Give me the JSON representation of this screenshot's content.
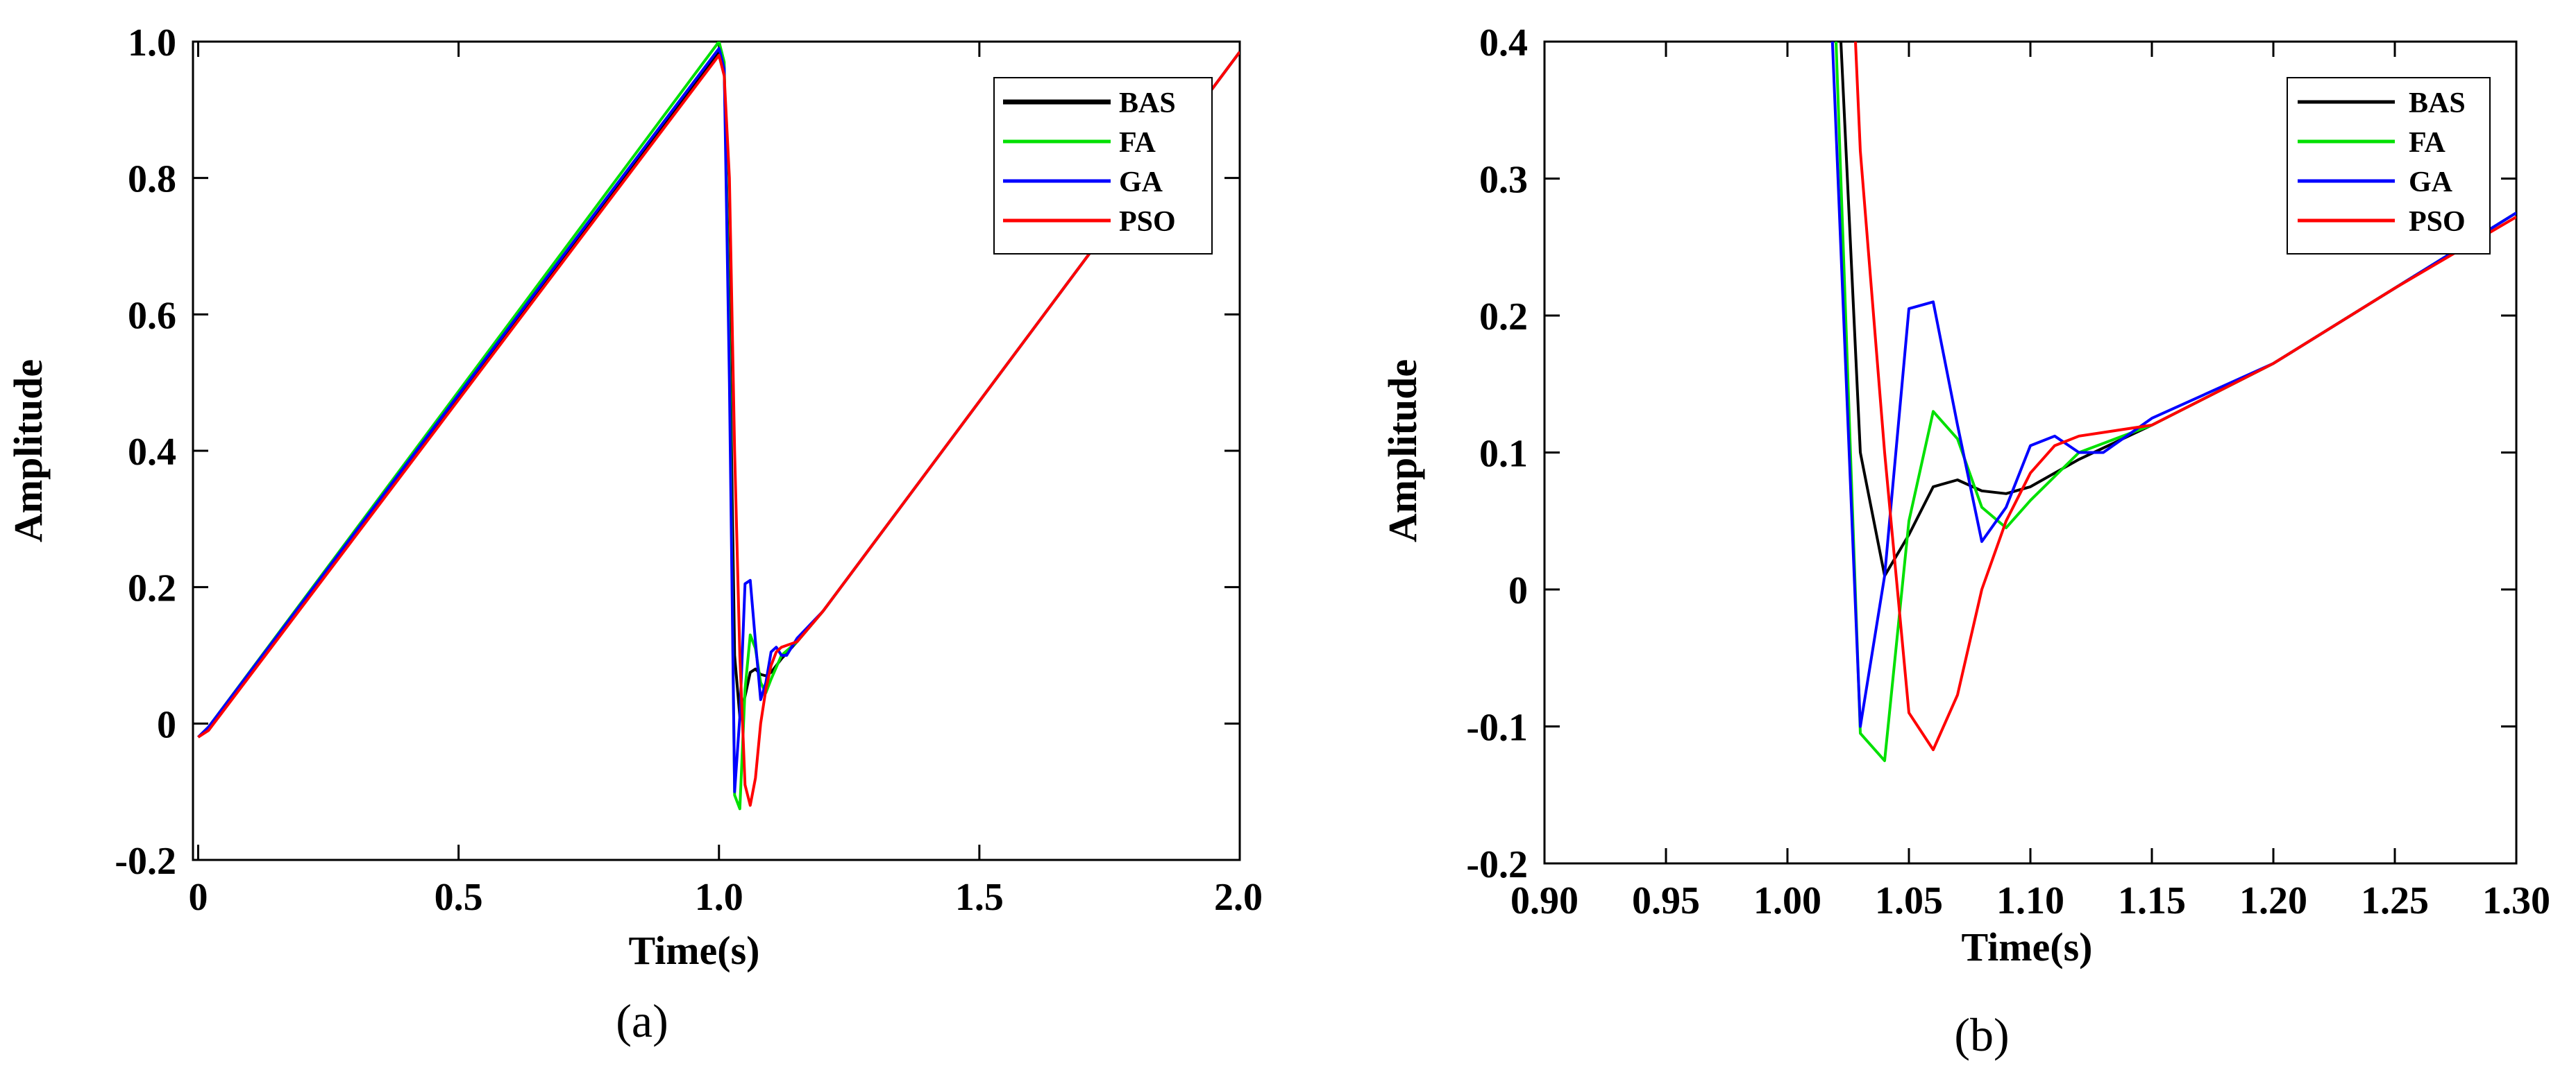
{
  "chart_data": [
    {
      "type": "line",
      "panel": "a",
      "caption": "(a)",
      "xlabel": "Time(s)",
      "ylabel": "Amplitude",
      "xlim": [
        -0.01,
        2.0
      ],
      "ylim": [
        -0.2,
        1.0
      ],
      "xticks": [
        0,
        0.5,
        1.0,
        1.5,
        2.0
      ],
      "xtick_labels": [
        "0",
        "0.5",
        "1.0",
        "1.5",
        "2.0"
      ],
      "yticks": [
        -0.2,
        0,
        0.2,
        0.4,
        0.6,
        0.8,
        1.0
      ],
      "ytick_labels": [
        "-0.2",
        "0",
        "0.2",
        "0.4",
        "0.6",
        "0.8",
        "1.0"
      ],
      "legend": [
        "BAS",
        "FA",
        "GA",
        "PSO"
      ],
      "legend_position": "top-right",
      "series": [
        {
          "name": "BAS",
          "color": "#000000",
          "x": [
            0,
            0.02,
            1.0,
            1.01,
            1.02,
            1.03,
            1.04,
            1.05,
            1.06,
            1.07,
            1.08,
            1.09,
            1.1,
            1.12,
            1.15,
            1.2,
            2.0
          ],
          "y": [
            -0.02,
            -0.005,
            0.985,
            0.96,
            0.6,
            0.1,
            0.01,
            0.04,
            0.075,
            0.08,
            0.072,
            0.07,
            0.075,
            0.095,
            0.12,
            0.165,
            0.985
          ]
        },
        {
          "name": "FA",
          "color": "#00e000",
          "x": [
            0,
            0.02,
            1.0,
            1.01,
            1.02,
            1.03,
            1.04,
            1.05,
            1.06,
            1.07,
            1.08,
            1.09,
            1.1,
            1.12,
            1.15,
            1.2,
            2.0
          ],
          "y": [
            -0.02,
            -0.005,
            1.0,
            0.97,
            0.55,
            -0.105,
            -0.125,
            0.05,
            0.13,
            0.11,
            0.06,
            0.045,
            0.065,
            0.1,
            0.12,
            0.165,
            0.985
          ]
        },
        {
          "name": "GA",
          "color": "#0000ff",
          "x": [
            0,
            0.02,
            1.0,
            1.01,
            1.02,
            1.03,
            1.04,
            1.05,
            1.06,
            1.07,
            1.08,
            1.09,
            1.1,
            1.11,
            1.12,
            1.13,
            1.15,
            1.2,
            2.0
          ],
          "y": [
            -0.02,
            -0.005,
            0.99,
            0.96,
            0.5,
            -0.1,
            0.01,
            0.205,
            0.21,
            0.12,
            0.035,
            0.06,
            0.105,
            0.112,
            0.1,
            0.1,
            0.125,
            0.165,
            0.985
          ]
        },
        {
          "name": "PSO",
          "color": "#ff0000",
          "x": [
            0,
            0.02,
            1.0,
            1.01,
            1.02,
            1.03,
            1.04,
            1.05,
            1.06,
            1.07,
            1.08,
            1.09,
            1.1,
            1.11,
            1.12,
            1.15,
            1.2,
            2.0
          ],
          "y": [
            -0.02,
            -0.01,
            0.98,
            0.95,
            0.8,
            0.4,
            0.1,
            -0.09,
            -0.12,
            -0.08,
            0.0,
            0.05,
            0.085,
            0.105,
            0.112,
            0.12,
            0.165,
            0.985
          ]
        }
      ]
    },
    {
      "type": "line",
      "panel": "b",
      "caption": "(b)",
      "xlabel": "Time(s)",
      "ylabel": "Amplitude",
      "xlim": [
        0.9,
        1.3
      ],
      "ylim": [
        -0.2,
        0.4
      ],
      "xticks": [
        0.9,
        0.95,
        1.0,
        1.05,
        1.1,
        1.15,
        1.2,
        1.25,
        1.3
      ],
      "xtick_labels": [
        "0.90",
        "0.95",
        "1.00",
        "1.05",
        "1.10",
        "1.15",
        "1.20",
        "1.25",
        "1.30"
      ],
      "yticks": [
        -0.2,
        -0.1,
        0,
        0.1,
        0.2,
        0.3,
        0.4
      ],
      "ytick_labels": [
        "-0.2",
        "-0.1",
        "0",
        "0.1",
        "0.2",
        "0.3",
        "0.4"
      ],
      "legend": [
        "BAS",
        "FA",
        "GA",
        "PSO"
      ],
      "legend_position": "top-right",
      "series": [
        {
          "name": "BAS",
          "color": "#000000",
          "x": [
            1.022,
            1.03,
            1.04,
            1.05,
            1.06,
            1.07,
            1.08,
            1.09,
            1.1,
            1.12,
            1.15,
            1.2,
            1.25,
            1.3
          ],
          "y": [
            0.4,
            0.1,
            0.01,
            0.04,
            0.075,
            0.08,
            0.072,
            0.07,
            0.075,
            0.095,
            0.12,
            0.165,
            0.22,
            0.275
          ]
        },
        {
          "name": "FA",
          "color": "#00e000",
          "x": [
            1.02,
            1.03,
            1.04,
            1.05,
            1.06,
            1.07,
            1.08,
            1.09,
            1.1,
            1.12,
            1.15,
            1.2,
            1.25,
            1.3
          ],
          "y": [
            0.4,
            -0.105,
            -0.125,
            0.05,
            0.13,
            0.11,
            0.06,
            0.045,
            0.065,
            0.1,
            0.12,
            0.165,
            0.22,
            0.275
          ]
        },
        {
          "name": "GA",
          "color": "#0000ff",
          "x": [
            1.0185,
            1.03,
            1.04,
            1.05,
            1.06,
            1.07,
            1.08,
            1.09,
            1.1,
            1.11,
            1.12,
            1.13,
            1.15,
            1.2,
            1.25,
            1.3
          ],
          "y": [
            0.4,
            -0.1,
            0.01,
            0.205,
            0.21,
            0.12,
            0.035,
            0.06,
            0.105,
            0.112,
            0.1,
            0.1,
            0.125,
            0.165,
            0.22,
            0.275
          ]
        },
        {
          "name": "PSO",
          "color": "#ff0000",
          "x": [
            1.028,
            1.03,
            1.04,
            1.05,
            1.06,
            1.07,
            1.08,
            1.09,
            1.1,
            1.11,
            1.12,
            1.15,
            1.2,
            1.25,
            1.3
          ],
          "y": [
            0.4,
            0.32,
            0.1,
            -0.09,
            -0.117,
            -0.077,
            0.0,
            0.05,
            0.085,
            0.105,
            0.112,
            0.12,
            0.165,
            0.22,
            0.272
          ]
        }
      ]
    }
  ]
}
